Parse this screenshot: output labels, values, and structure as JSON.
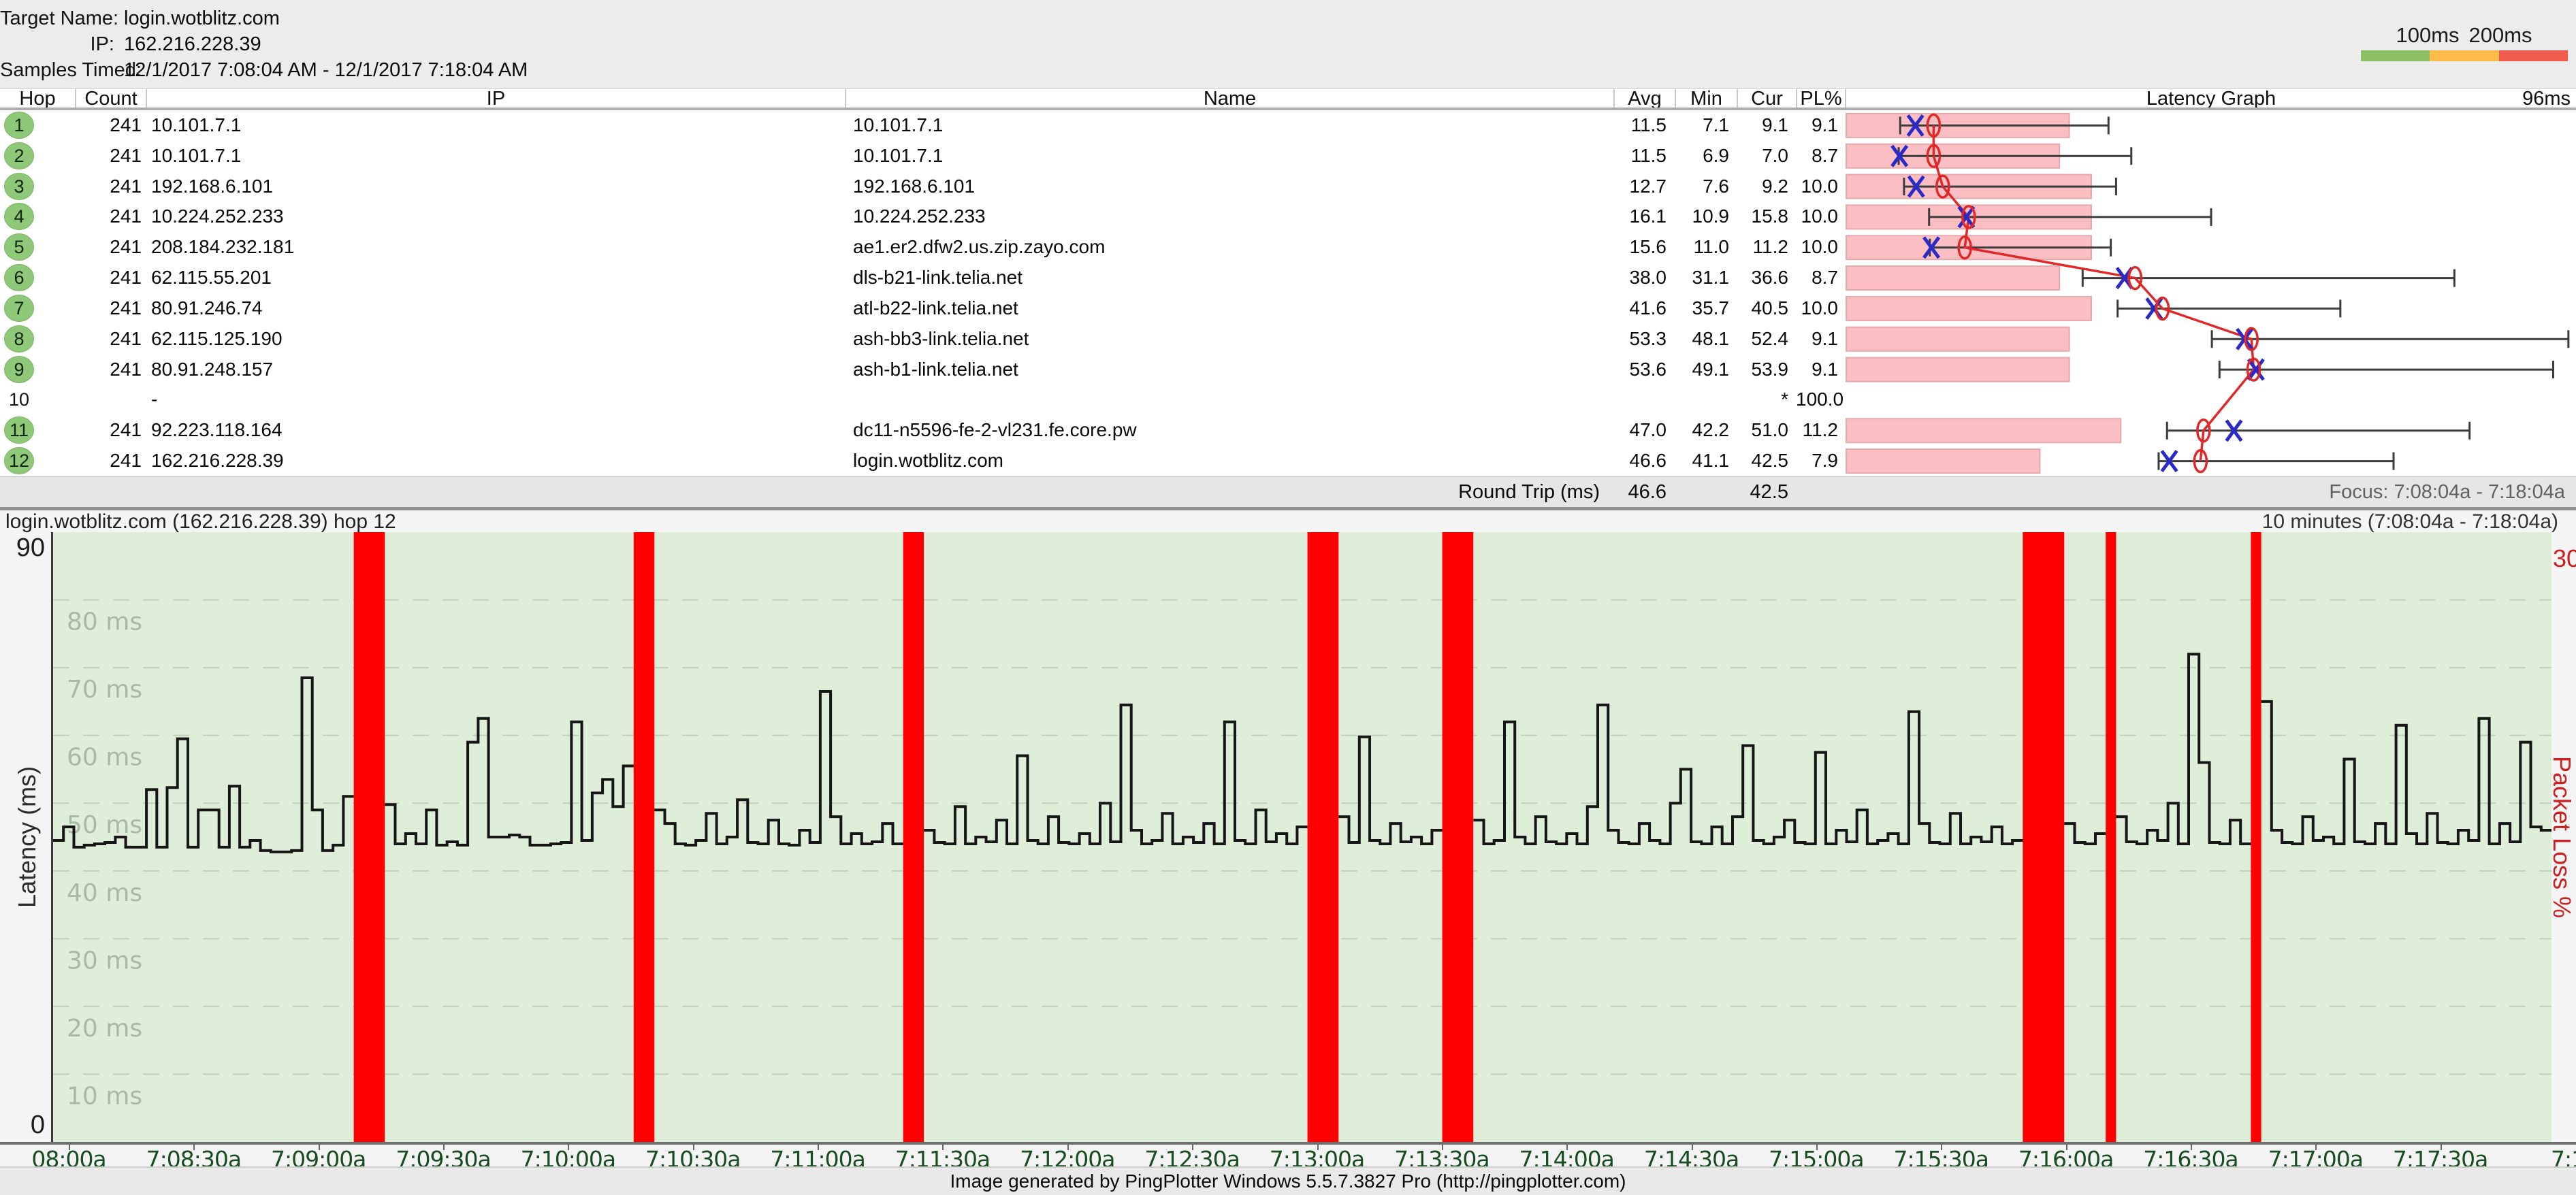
{
  "header": {
    "rows": [
      {
        "label": "Target Name:",
        "value": "login.wotblitz.com"
      },
      {
        "label": "IP:",
        "value": "162.216.228.39"
      },
      {
        "label": "Samples Timed:",
        "value": "12/1/2017 7:08:04 AM - 12/1/2017 7:18:04 AM"
      }
    ],
    "legend": {
      "label_100": "100ms",
      "label_200": "200ms",
      "colors": [
        "#8dc063",
        "#fbbc49",
        "#f15b4d"
      ]
    }
  },
  "table": {
    "columns": [
      "Hop",
      "Count",
      "IP",
      "Name",
      "Avg",
      "Min",
      "Cur",
      "PL%",
      "Latency Graph"
    ],
    "scale_label": "96ms",
    "scale_max_ms": 96,
    "hops": [
      {
        "hop": "1",
        "count": "241",
        "ip": "10.101.7.1",
        "name": "10.101.7.1",
        "avg": "11.5",
        "min": "7.1",
        "cur": "9.1",
        "pl": "9.1",
        "max_ms": 34.5
      },
      {
        "hop": "2",
        "count": "241",
        "ip": "10.101.7.1",
        "name": "10.101.7.1",
        "avg": "11.5",
        "min": "6.9",
        "cur": "7.0",
        "pl": "8.7",
        "max_ms": 37.5
      },
      {
        "hop": "3",
        "count": "241",
        "ip": "192.168.6.101",
        "name": "192.168.6.101",
        "avg": "12.7",
        "min": "7.6",
        "cur": "9.2",
        "pl": "10.0",
        "max_ms": 35.5
      },
      {
        "hop": "4",
        "count": "241",
        "ip": "10.224.252.233",
        "name": "10.224.252.233",
        "avg": "16.1",
        "min": "10.9",
        "cur": "15.8",
        "pl": "10.0",
        "max_ms": 48.0
      },
      {
        "hop": "5",
        "count": "241",
        "ip": "208.184.232.181",
        "name": "ae1.er2.dfw2.us.zip.zayo.com",
        "avg": "15.6",
        "min": "11.0",
        "cur": "11.2",
        "pl": "10.0",
        "max_ms": 34.8
      },
      {
        "hop": "6",
        "count": "241",
        "ip": "62.115.55.201",
        "name": "dls-b21-link.telia.net",
        "avg": "38.0",
        "min": "31.1",
        "cur": "36.6",
        "pl": "8.7",
        "max_ms": 80.0
      },
      {
        "hop": "7",
        "count": "241",
        "ip": "80.91.246.74",
        "name": "atl-b22-link.telia.net",
        "avg": "41.6",
        "min": "35.7",
        "cur": "40.5",
        "pl": "10.0",
        "max_ms": 65.0
      },
      {
        "hop": "8",
        "count": "241",
        "ip": "62.115.125.190",
        "name": "ash-bb3-link.telia.net",
        "avg": "53.3",
        "min": "48.1",
        "cur": "52.4",
        "pl": "9.1",
        "max_ms": 95.0
      },
      {
        "hop": "9",
        "count": "241",
        "ip": "80.91.248.157",
        "name": "ash-b1-link.telia.net",
        "avg": "53.6",
        "min": "49.1",
        "cur": "53.9",
        "pl": "9.1",
        "max_ms": 93.0
      },
      {
        "hop": "10",
        "count": "",
        "ip": "-",
        "name": "",
        "avg": "",
        "min": "",
        "cur": "*",
        "pl": "100.0",
        "max_ms": null
      },
      {
        "hop": "11",
        "count": "241",
        "ip": "92.223.118.164",
        "name": "dc11-n5596-fe-2-vl231.fe.core.pw",
        "avg": "47.0",
        "min": "42.2",
        "cur": "51.0",
        "pl": "11.2",
        "max_ms": 82.0
      },
      {
        "hop": "12",
        "count": "241",
        "ip": "162.216.228.39",
        "name": "login.wotblitz.com",
        "avg": "46.6",
        "min": "41.1",
        "cur": "42.5",
        "pl": "7.9",
        "max_ms": 72.0
      }
    ],
    "roundtrip": {
      "label": "Round Trip (ms)",
      "avg": "46.6",
      "cur": "42.5"
    },
    "focus": "Focus: 7:08:04a - 7:18:04a"
  },
  "graph": {
    "title_left": "login.wotblitz.com (162.216.228.39) hop 12",
    "title_right": "10 minutes (7:08:04a - 7:18:04a)",
    "y_max_label": "90",
    "y_min_label": "0",
    "ylabel": "Latency (ms)",
    "loss_max_label": "30",
    "ylabel_right": "Packet Loss %",
    "grid_labels": [
      "80 ms",
      "70 ms",
      "60 ms",
      "50 ms",
      "40 ms",
      "30 ms",
      "20 ms",
      "10 ms"
    ],
    "x_labels": [
      "08:00a",
      "7:08:30a",
      "7:09:00a",
      "7:09:30a",
      "7:10:00a",
      "7:10:30a",
      "7:11:00a",
      "7:11:30a",
      "7:12:00a",
      "7:12:30a",
      "7:13:00a",
      "7:13:30a",
      "7:14:00a",
      "7:14:30a",
      "7:15:00a",
      "7:15:30a",
      "7:16:00a",
      "7:16:30a",
      "7:17:00a",
      "7:17:30a",
      "7:1"
    ]
  },
  "footer": "Image generated by PingPlotter Windows 5.5.7.3827 Pro (http://pingplotter.com)",
  "colors": {
    "legend_green": "#8dc063",
    "legend_orange": "#fbbc49",
    "legend_red": "#f15b4d",
    "latency_col_bg": "#dcedd6",
    "loss_bar_fill": "#fbbfc3",
    "loss_bar_border": "#e3a9ad",
    "whisker": "#3c3c3c",
    "current_marker_blue": "#2a2ac8",
    "average_marker_red": "#e02828",
    "plot_bg": "#dfeed9",
    "step_line": "#161616",
    "loss_event_red": "#fe0000",
    "x_label_green": "#184d20",
    "grid_label": "#a9b9a5",
    "packet_loss_axis_red": "#cc2020"
  },
  "chart_data": [
    {
      "type": "bar",
      "title": "Latency Graph",
      "note": "per-hop latency summary: whisker = min..max ms, O = avg, X = cur, pink bar length = packet loss %",
      "xlim_ms": [
        0,
        96
      ],
      "categories": [
        "1",
        "2",
        "3",
        "4",
        "5",
        "6",
        "7",
        "8",
        "9",
        "10",
        "11",
        "12"
      ],
      "series": [
        {
          "name": "avg_ms",
          "values": [
            11.5,
            11.5,
            12.7,
            16.1,
            15.6,
            38.0,
            41.6,
            53.3,
            53.6,
            null,
            47.0,
            46.6
          ]
        },
        {
          "name": "min_ms",
          "values": [
            7.1,
            6.9,
            7.6,
            10.9,
            11.0,
            31.1,
            35.7,
            48.1,
            49.1,
            null,
            42.2,
            41.1
          ]
        },
        {
          "name": "cur_ms",
          "values": [
            9.1,
            7.0,
            9.2,
            15.8,
            11.2,
            36.6,
            40.5,
            52.4,
            53.9,
            null,
            51.0,
            42.5
          ]
        },
        {
          "name": "max_ms",
          "values": [
            34.5,
            37.5,
            35.5,
            48.0,
            34.8,
            80.0,
            65.0,
            95.0,
            93.0,
            null,
            82.0,
            72.0
          ]
        },
        {
          "name": "packet_loss_pct",
          "values": [
            9.1,
            8.7,
            10.0,
            10.0,
            10.0,
            8.7,
            10.0,
            9.1,
            9.1,
            100.0,
            11.2,
            7.9
          ]
        }
      ]
    },
    {
      "type": "line",
      "title": "login.wotblitz.com (162.216.228.39) hop 12",
      "xlabel": "time 7:08:04a - 7:18:04a, one sample every 2.5 s; null = lost sample (red bar)",
      "ylabel": "Latency (ms)",
      "ylim": [
        0,
        90
      ],
      "y2label": "Packet Loss %",
      "y2lim": [
        0,
        30
      ],
      "grid": true,
      "samples": [
        44.5,
        46.5,
        43.5,
        43.8,
        44,
        44.2,
        45,
        43.5,
        43.5,
        52,
        43.5,
        52.3,
        59.5,
        43.5,
        49,
        49,
        43.5,
        52.5,
        43.5,
        44.5,
        43,
        42.8,
        42.8,
        43,
        68.5,
        49,
        43,
        43.8,
        51,
        null,
        null,
        null,
        49.8,
        44,
        45.5,
        44,
        49,
        43.8,
        44.3,
        43.8,
        59,
        62.5,
        45,
        45,
        45.3,
        45,
        43.8,
        43.8,
        44,
        44.2,
        62,
        44.5,
        51.5,
        53.5,
        49.5,
        55.5,
        null,
        null,
        49,
        47,
        44,
        43.8,
        44.5,
        48.5,
        44,
        45,
        50.5,
        44.2,
        44,
        47.5,
        44,
        43.8,
        46,
        44.2,
        66.5,
        48,
        44,
        45.5,
        44,
        44.3,
        47,
        44,
        null,
        null,
        46,
        44.2,
        44,
        49.5,
        44,
        45,
        44.3,
        47.5,
        44,
        57,
        44.5,
        44,
        48,
        44.2,
        44,
        45.5,
        44,
        50,
        44.3,
        64.5,
        46,
        44,
        44.5,
        48.5,
        44,
        45,
        44.2,
        47,
        44,
        62,
        44.5,
        44,
        49,
        44.3,
        45.5,
        44,
        46.5,
        null,
        null,
        null,
        48,
        44.2,
        59.8,
        44.5,
        44,
        47,
        44.3,
        45,
        44,
        46,
        null,
        null,
        null,
        47.5,
        44,
        44.5,
        62,
        45,
        44,
        48,
        44.3,
        44,
        45.5,
        44,
        49.5,
        64.5,
        46,
        44.2,
        44,
        47,
        44.5,
        44,
        50,
        55,
        44.3,
        44,
        46.5,
        44,
        48,
        58.5,
        44.5,
        44,
        45,
        47.5,
        44.2,
        44,
        57.5,
        44,
        46,
        44.3,
        49,
        44,
        44.5,
        45.5,
        44,
        63.5,
        47,
        44.2,
        44,
        48.5,
        44,
        45,
        44.3,
        46.5,
        44,
        44.5,
        null,
        null,
        null,
        null,
        47,
        44.2,
        44,
        45.5,
        null,
        48,
        44.3,
        44,
        46,
        44.5,
        50,
        44,
        72,
        56,
        44.2,
        44,
        47.5,
        44,
        null,
        65,
        46,
        44.2,
        44,
        48,
        44.5,
        45,
        44,
        56.5,
        44.3,
        44,
        47,
        44,
        61.5,
        45.5,
        44,
        48.5,
        44.2,
        44,
        46,
        44.5,
        62.5,
        44,
        47,
        44.3,
        59,
        46.5,
        46
      ]
    }
  ]
}
